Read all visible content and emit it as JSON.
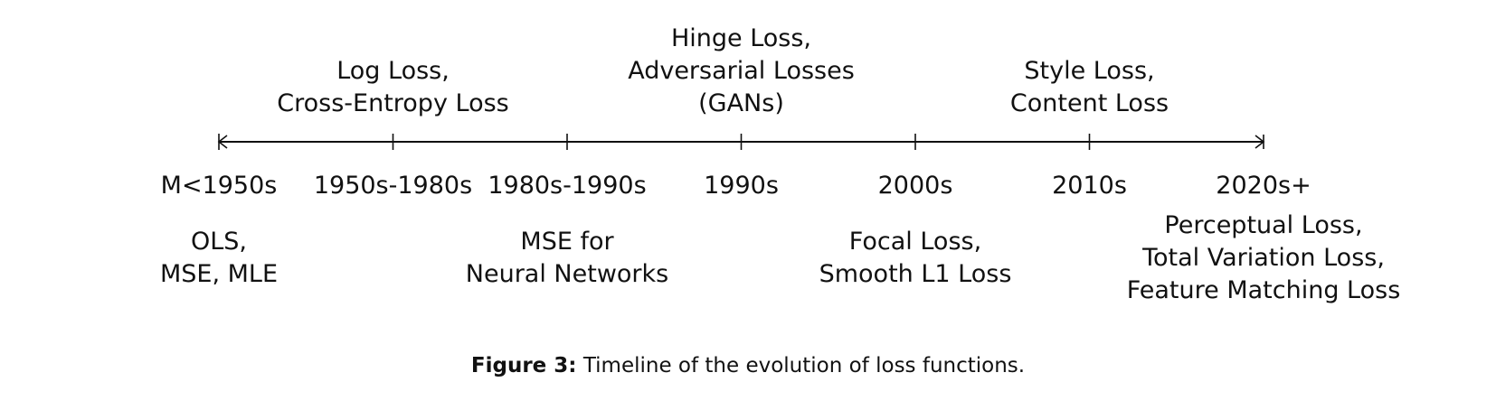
{
  "timeline": {
    "periods": [
      "M<1950s",
      "1950s-1980s",
      "1980s-1990s",
      "1990s",
      "2000s",
      "2010s",
      "2020s+"
    ],
    "events": [
      {
        "period": "M<1950s",
        "side": "below",
        "lines": [
          "OLS,",
          "MSE, MLE"
        ]
      },
      {
        "period": "1950s-1980s",
        "side": "above",
        "lines": [
          "Log Loss,",
          "Cross-Entropy Loss"
        ]
      },
      {
        "period": "1980s-1990s",
        "side": "below",
        "lines": [
          "MSE for",
          "Neural Networks"
        ]
      },
      {
        "period": "1990s",
        "side": "above",
        "lines": [
          "Hinge Loss,",
          "Adversarial Losses",
          "(GANs)"
        ]
      },
      {
        "period": "2000s",
        "side": "below",
        "lines": [
          "Focal Loss,",
          "Smooth L1 Loss"
        ]
      },
      {
        "period": "2010s",
        "side": "above",
        "lines": [
          "Style Loss,",
          "Content Loss"
        ]
      },
      {
        "period": "2020s+",
        "side": "below",
        "lines": [
          "Perceptual Loss,",
          "Total Variation Loss,",
          "Feature Matching Loss"
        ]
      }
    ]
  },
  "caption": {
    "label": "Figure 3:",
    "text": "Timeline of the evolution of loss functions."
  },
  "colors": {
    "axis": "#111111",
    "text": "#111111"
  }
}
